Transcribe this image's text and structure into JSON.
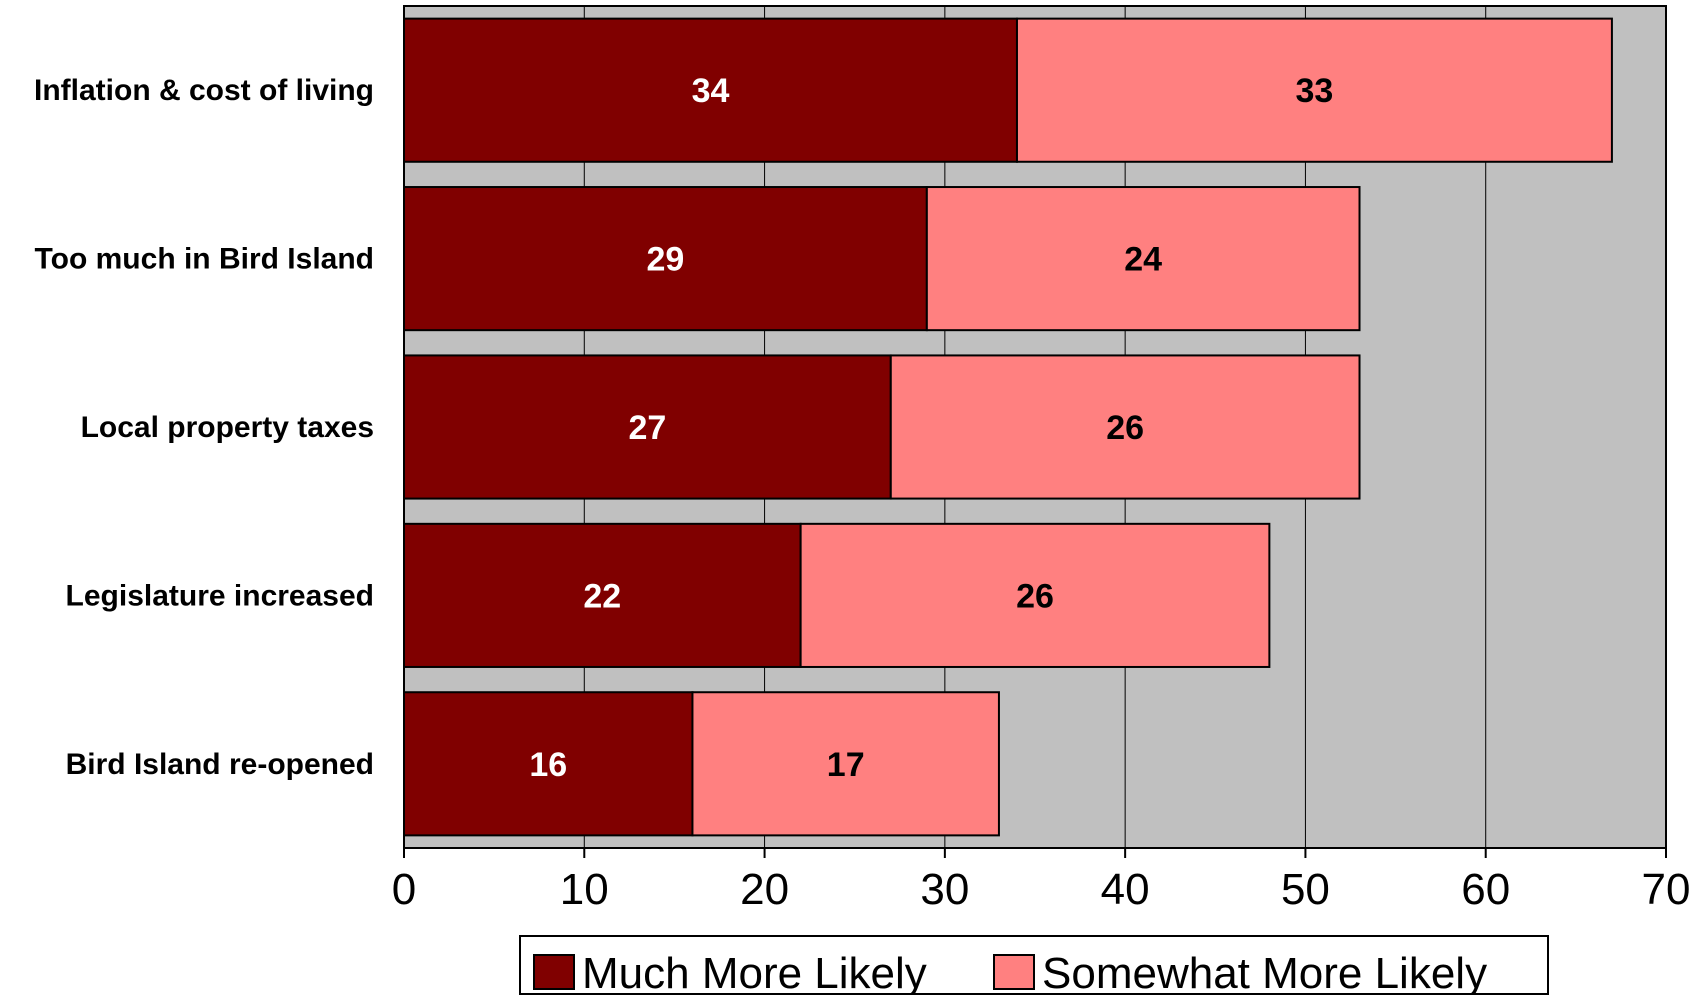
{
  "chart_data": {
    "type": "bar",
    "orientation": "horizontal",
    "stacked": true,
    "categories": [
      "Inflation & cost of living",
      "Too much in Bird Island",
      "Local property taxes",
      "Legislature increased",
      "Bird Island re-opened"
    ],
    "series": [
      {
        "name": "Much More Likely",
        "values": [
          34,
          29,
          27,
          22,
          16
        ],
        "color": "#800000",
        "label_color": "#ffffff"
      },
      {
        "name": "Somewhat More Likely",
        "values": [
          33,
          24,
          26,
          26,
          17
        ],
        "color": "#ff8080",
        "label_color": "#000000"
      }
    ],
    "xlim": [
      0,
      70
    ],
    "xticks": [
      "0",
      "10",
      "20",
      "30",
      "40",
      "50",
      "60",
      "70"
    ],
    "grid": true,
    "plot_background": "#c0c0c0",
    "legend_position": "bottom",
    "title": "",
    "xlabel": "",
    "ylabel": ""
  }
}
